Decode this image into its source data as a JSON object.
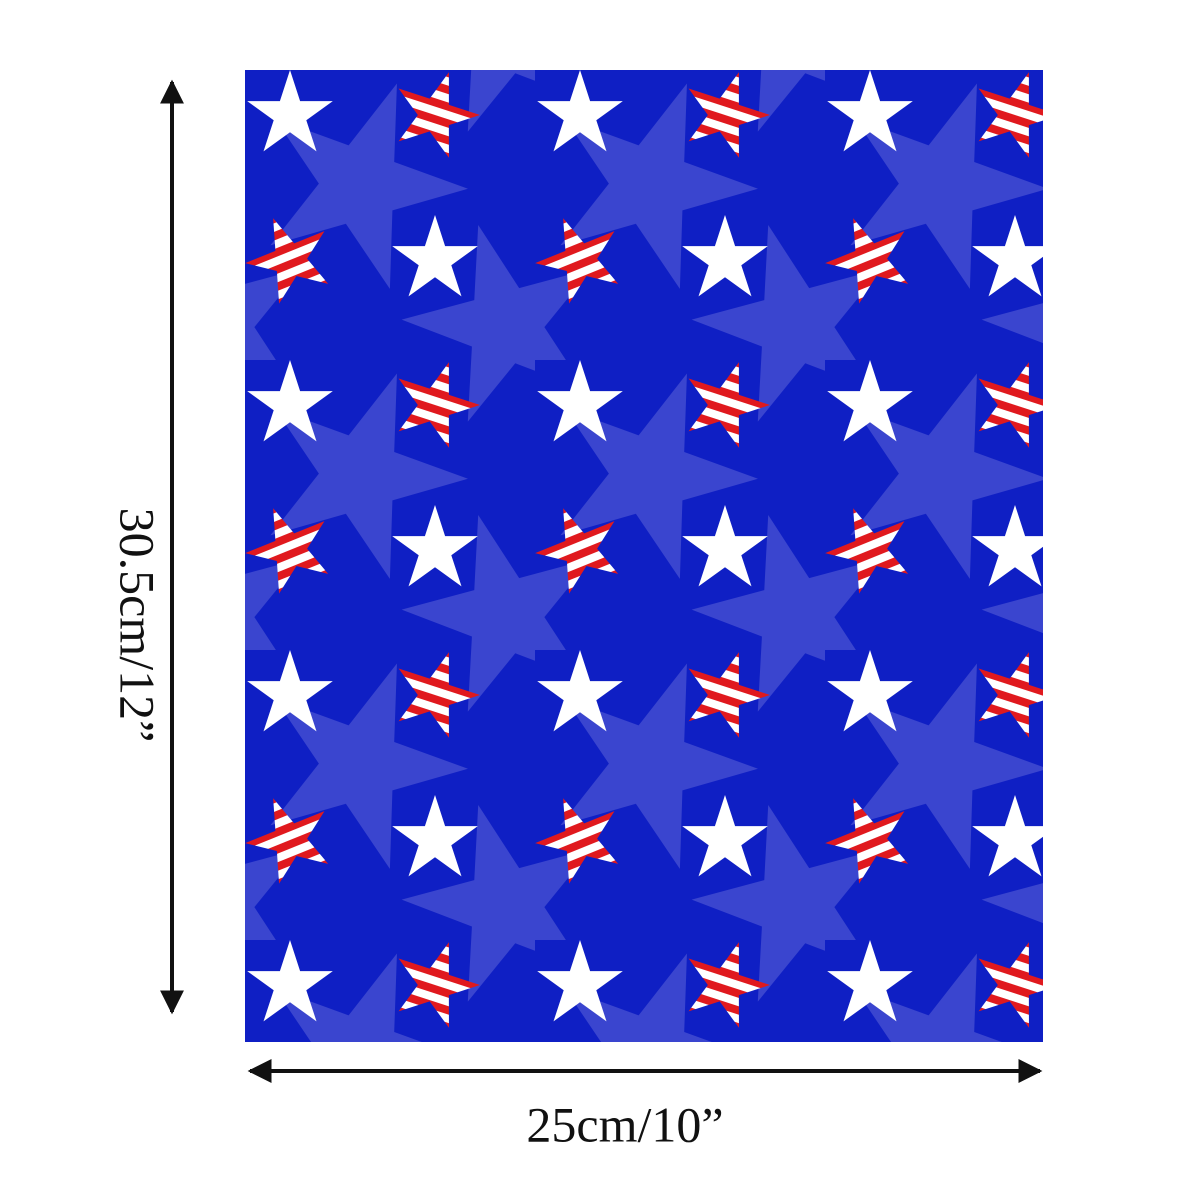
{
  "dimensions": {
    "height": "30.5cm/12”",
    "width": "25cm/10”"
  }
}
